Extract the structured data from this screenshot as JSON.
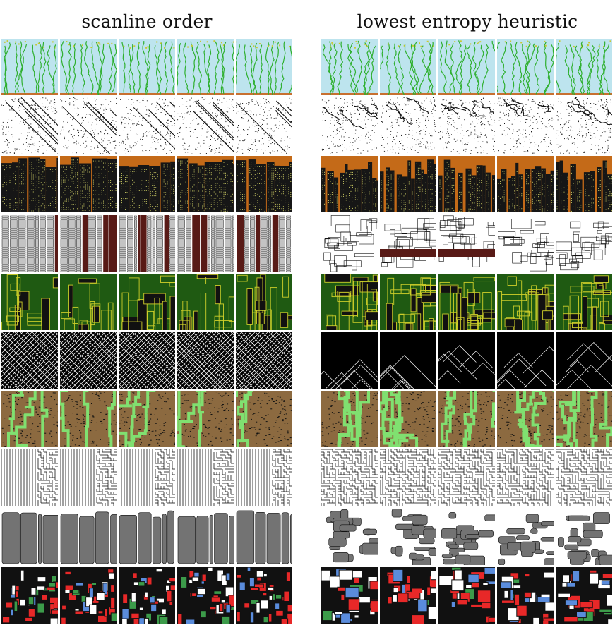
{
  "figure": {
    "left_title": "scanline order",
    "right_title": "lowest entropy heuristic",
    "columns": [
      "scanline",
      "entropy"
    ],
    "samples_per_row": 5,
    "rows": [
      {
        "id": "river-plants",
        "palette": {
          "bg": "#bde4ee",
          "fg": "#2fb02f",
          "accent": "#c8c832",
          "ground": "#c87030"
        }
      },
      {
        "id": "dotted-lines",
        "palette": {
          "bg": "#ffffff",
          "fg": "#111111"
        }
      },
      {
        "id": "skyline",
        "palette": {
          "bg": "#c46a18",
          "fg": "#161616",
          "accent": "#c8c862"
        }
      },
      {
        "id": "brick-columns",
        "palette": {
          "bg": "#ffffff",
          "fg": "#581a16",
          "accent": "#111111"
        }
      },
      {
        "id": "green-circuit",
        "palette": {
          "bg": "#1f5a12",
          "fg": "#cfcf2a",
          "accent": "#111111"
        }
      },
      {
        "id": "diagonal-mesh",
        "palette": {
          "bg": "#000000",
          "fg": "#ffffff"
        }
      },
      {
        "id": "brown-caves",
        "palette": {
          "bg": "#8c6a40",
          "fg": "#111111",
          "accent": "#80e070"
        }
      },
      {
        "id": "maze",
        "palette": {
          "bg": "#ffffff",
          "fg": "#111111"
        }
      },
      {
        "id": "grey-blobs",
        "palette": {
          "bg": "#ffffff",
          "fg": "#737373",
          "accent": "#111111"
        }
      },
      {
        "id": "red-rooms",
        "palette": {
          "bg": "#111111",
          "fg": "#e82828",
          "accent": "#5a8cdc"
        }
      }
    ]
  }
}
